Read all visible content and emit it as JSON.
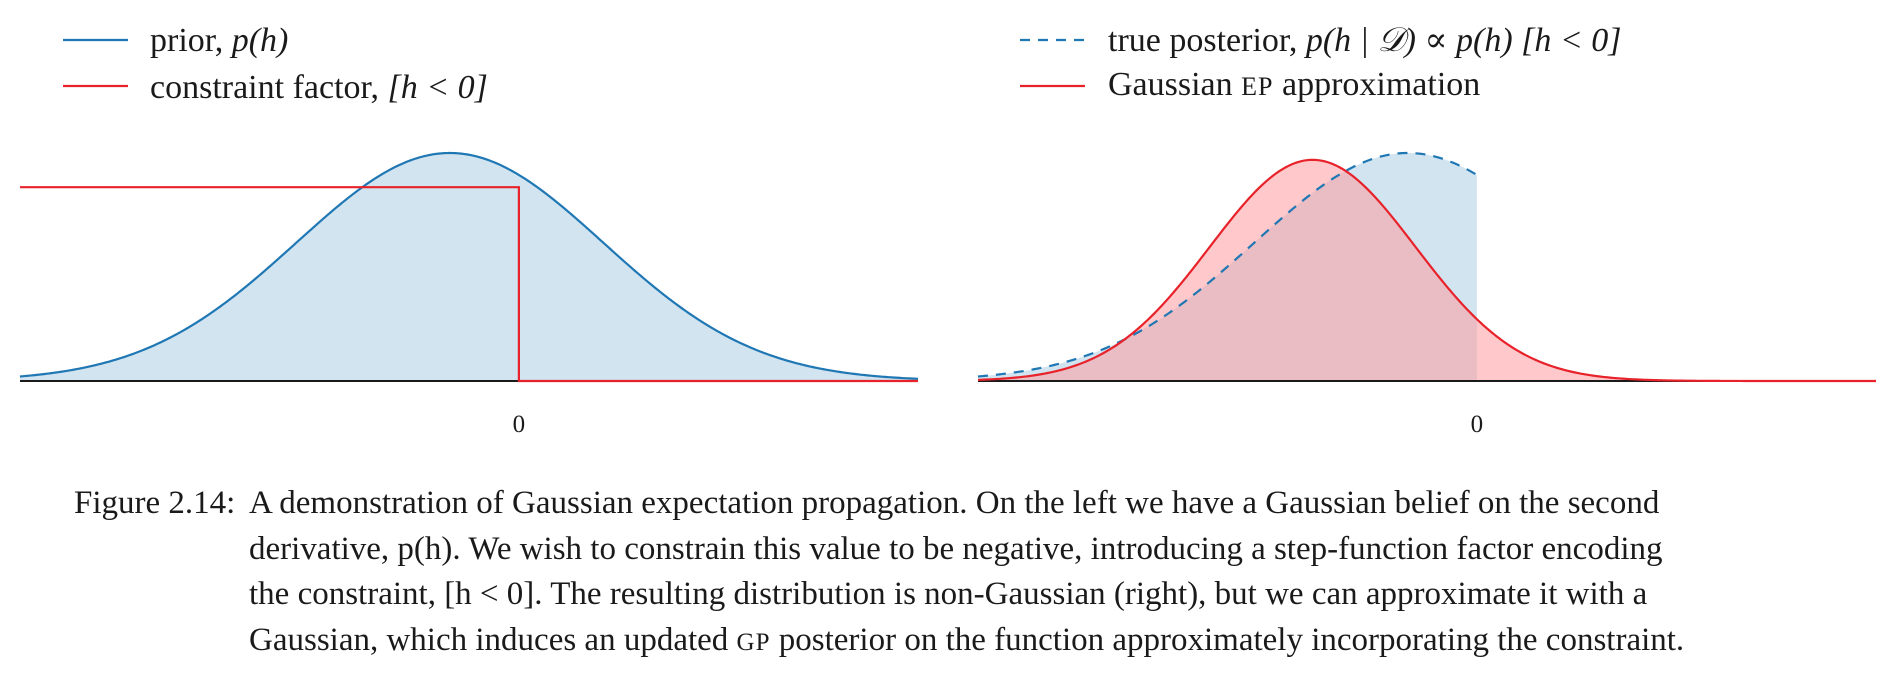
{
  "chart_data": [
    {
      "type": "area",
      "panel": "left",
      "x_tick_labels": [
        "0"
      ],
      "series": [
        {
          "name": "prior, p(h)",
          "line_color": "#1f77b4",
          "fill_color": "#d1e4f0",
          "shape": "gaussian",
          "mean": -0.45,
          "sd": 1.0,
          "peak_height": 1.0
        },
        {
          "name": "constraint factor, [h < 0]",
          "line_color": "#e8222a",
          "shape": "step",
          "value_below_zero": 0.85,
          "value_above_zero": 0.0
        }
      ],
      "xlim": [
        -3.25,
        2.6
      ],
      "ylim": [
        0,
        1.0
      ],
      "grid": false,
      "legend": "top-left"
    },
    {
      "type": "area",
      "panel": "right",
      "x_tick_labels": [
        "0"
      ],
      "series": [
        {
          "name": "true posterior, p(h | 𝒟) ∝ p(h) [h < 0]",
          "line_color": "#1f77b4",
          "fill_color": "#d1e4f0",
          "line_style": "dashed",
          "shape": "truncated-gaussian",
          "mean": -0.45,
          "sd": 1.0,
          "upper_bound": 0,
          "peak_height": 1.0
        },
        {
          "name": "Gaussian EP approximation",
          "line_color": "#e8222a",
          "fill_color": "#ff9a9e",
          "shape": "gaussian",
          "mean": -1.07,
          "sd": 0.67,
          "peak_height": 0.97
        }
      ],
      "xlim": [
        -3.25,
        2.6
      ],
      "ylim": [
        0,
        1.0
      ],
      "grid": false,
      "legend": "top-left"
    }
  ],
  "legend": {
    "left": {
      "prior_label": "prior, ",
      "prior_math": "p(h)",
      "constraint_label": "constraint factor, ",
      "constraint_math": "[h < 0]"
    },
    "right": {
      "posterior_label": "true posterior, ",
      "posterior_math": "p(h | 𝒟) ∝ p(h) [h < 0]",
      "ep_label_before": "Gaussian ",
      "ep_label_sc": "EP",
      "ep_label_after": " approximation"
    }
  },
  "caption": {
    "label": "Figure 2.14:",
    "line1": "A demonstration of Gaussian expectation propagation. On the left we have a Gaussian belief on the second",
    "line2": "derivative, p(h). We wish to constrain this value to be negative, introducing a step-function factor encoding",
    "line3": "the constraint, [h < 0]. The resulting distribution is non-Gaussian (right), but we can approximate it with a",
    "line4_before": "Gaussian, which induces an updated ",
    "line4_sc": "GP",
    "line4_after": " posterior on the function approximately incorporating the constraint."
  }
}
